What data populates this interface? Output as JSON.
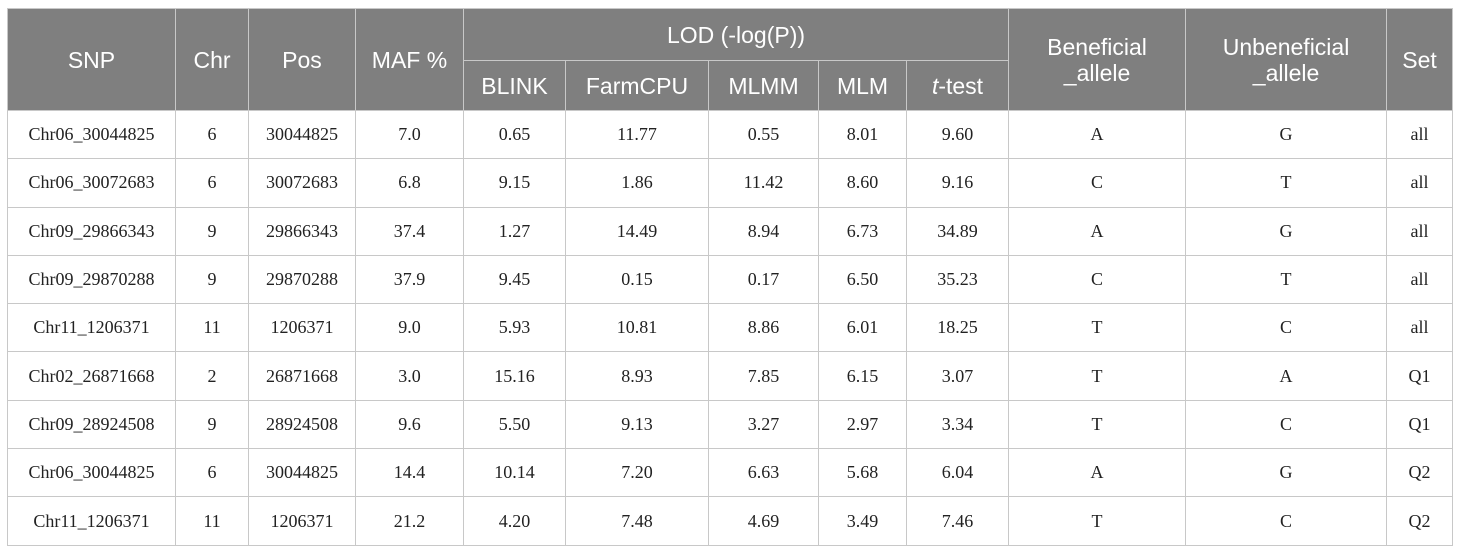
{
  "table": {
    "header": [
      "SNP",
      "Chr",
      "Pos",
      "MAF %",
      "LOD (-log(P))",
      "Beneficial\n_allele",
      "Unbeneficial\n_allele",
      "Set"
    ],
    "subheader": [
      "BLINK",
      "FarmCPU",
      "MLMM",
      "MLM",
      "t-test"
    ],
    "rows": [
      [
        "Chr06_30044825",
        "6",
        "30044825",
        "7.0",
        "0.65",
        "11.77",
        "0.55",
        "8.01",
        "9.60",
        "A",
        "G",
        "all"
      ],
      [
        "Chr06_30072683",
        "6",
        "30072683",
        "6.8",
        "9.15",
        "1.86",
        "11.42",
        "8.60",
        "9.16",
        "C",
        "T",
        "all"
      ],
      [
        "Chr09_29866343",
        "9",
        "29866343",
        "37.4",
        "1.27",
        "14.49",
        "8.94",
        "6.73",
        "34.89",
        "A",
        "G",
        "all"
      ],
      [
        "Chr09_29870288",
        "9",
        "29870288",
        "37.9",
        "9.45",
        "0.15",
        "0.17",
        "6.50",
        "35.23",
        "C",
        "T",
        "all"
      ],
      [
        "Chr11_1206371",
        "11",
        "1206371",
        "9.0",
        "5.93",
        "10.81",
        "8.86",
        "6.01",
        "18.25",
        "T",
        "C",
        "all"
      ],
      [
        "Chr02_26871668",
        "2",
        "26871668",
        "3.0",
        "15.16",
        "8.93",
        "7.85",
        "6.15",
        "3.07",
        "T",
        "A",
        "Q1"
      ],
      [
        "Chr09_28924508",
        "9",
        "28924508",
        "9.6",
        "5.50",
        "9.13",
        "3.27",
        "2.97",
        "3.34",
        "T",
        "C",
        "Q1"
      ],
      [
        "Chr06_30044825",
        "6",
        "30044825",
        "14.4",
        "10.14",
        "7.20",
        "6.63",
        "5.68",
        "6.04",
        "A",
        "G",
        "Q2"
      ],
      [
        "Chr11_1206371",
        "11",
        "1206371",
        "21.2",
        "4.20",
        "7.48",
        "4.69",
        "3.49",
        "7.46",
        "T",
        "C",
        "Q2"
      ]
    ]
  }
}
